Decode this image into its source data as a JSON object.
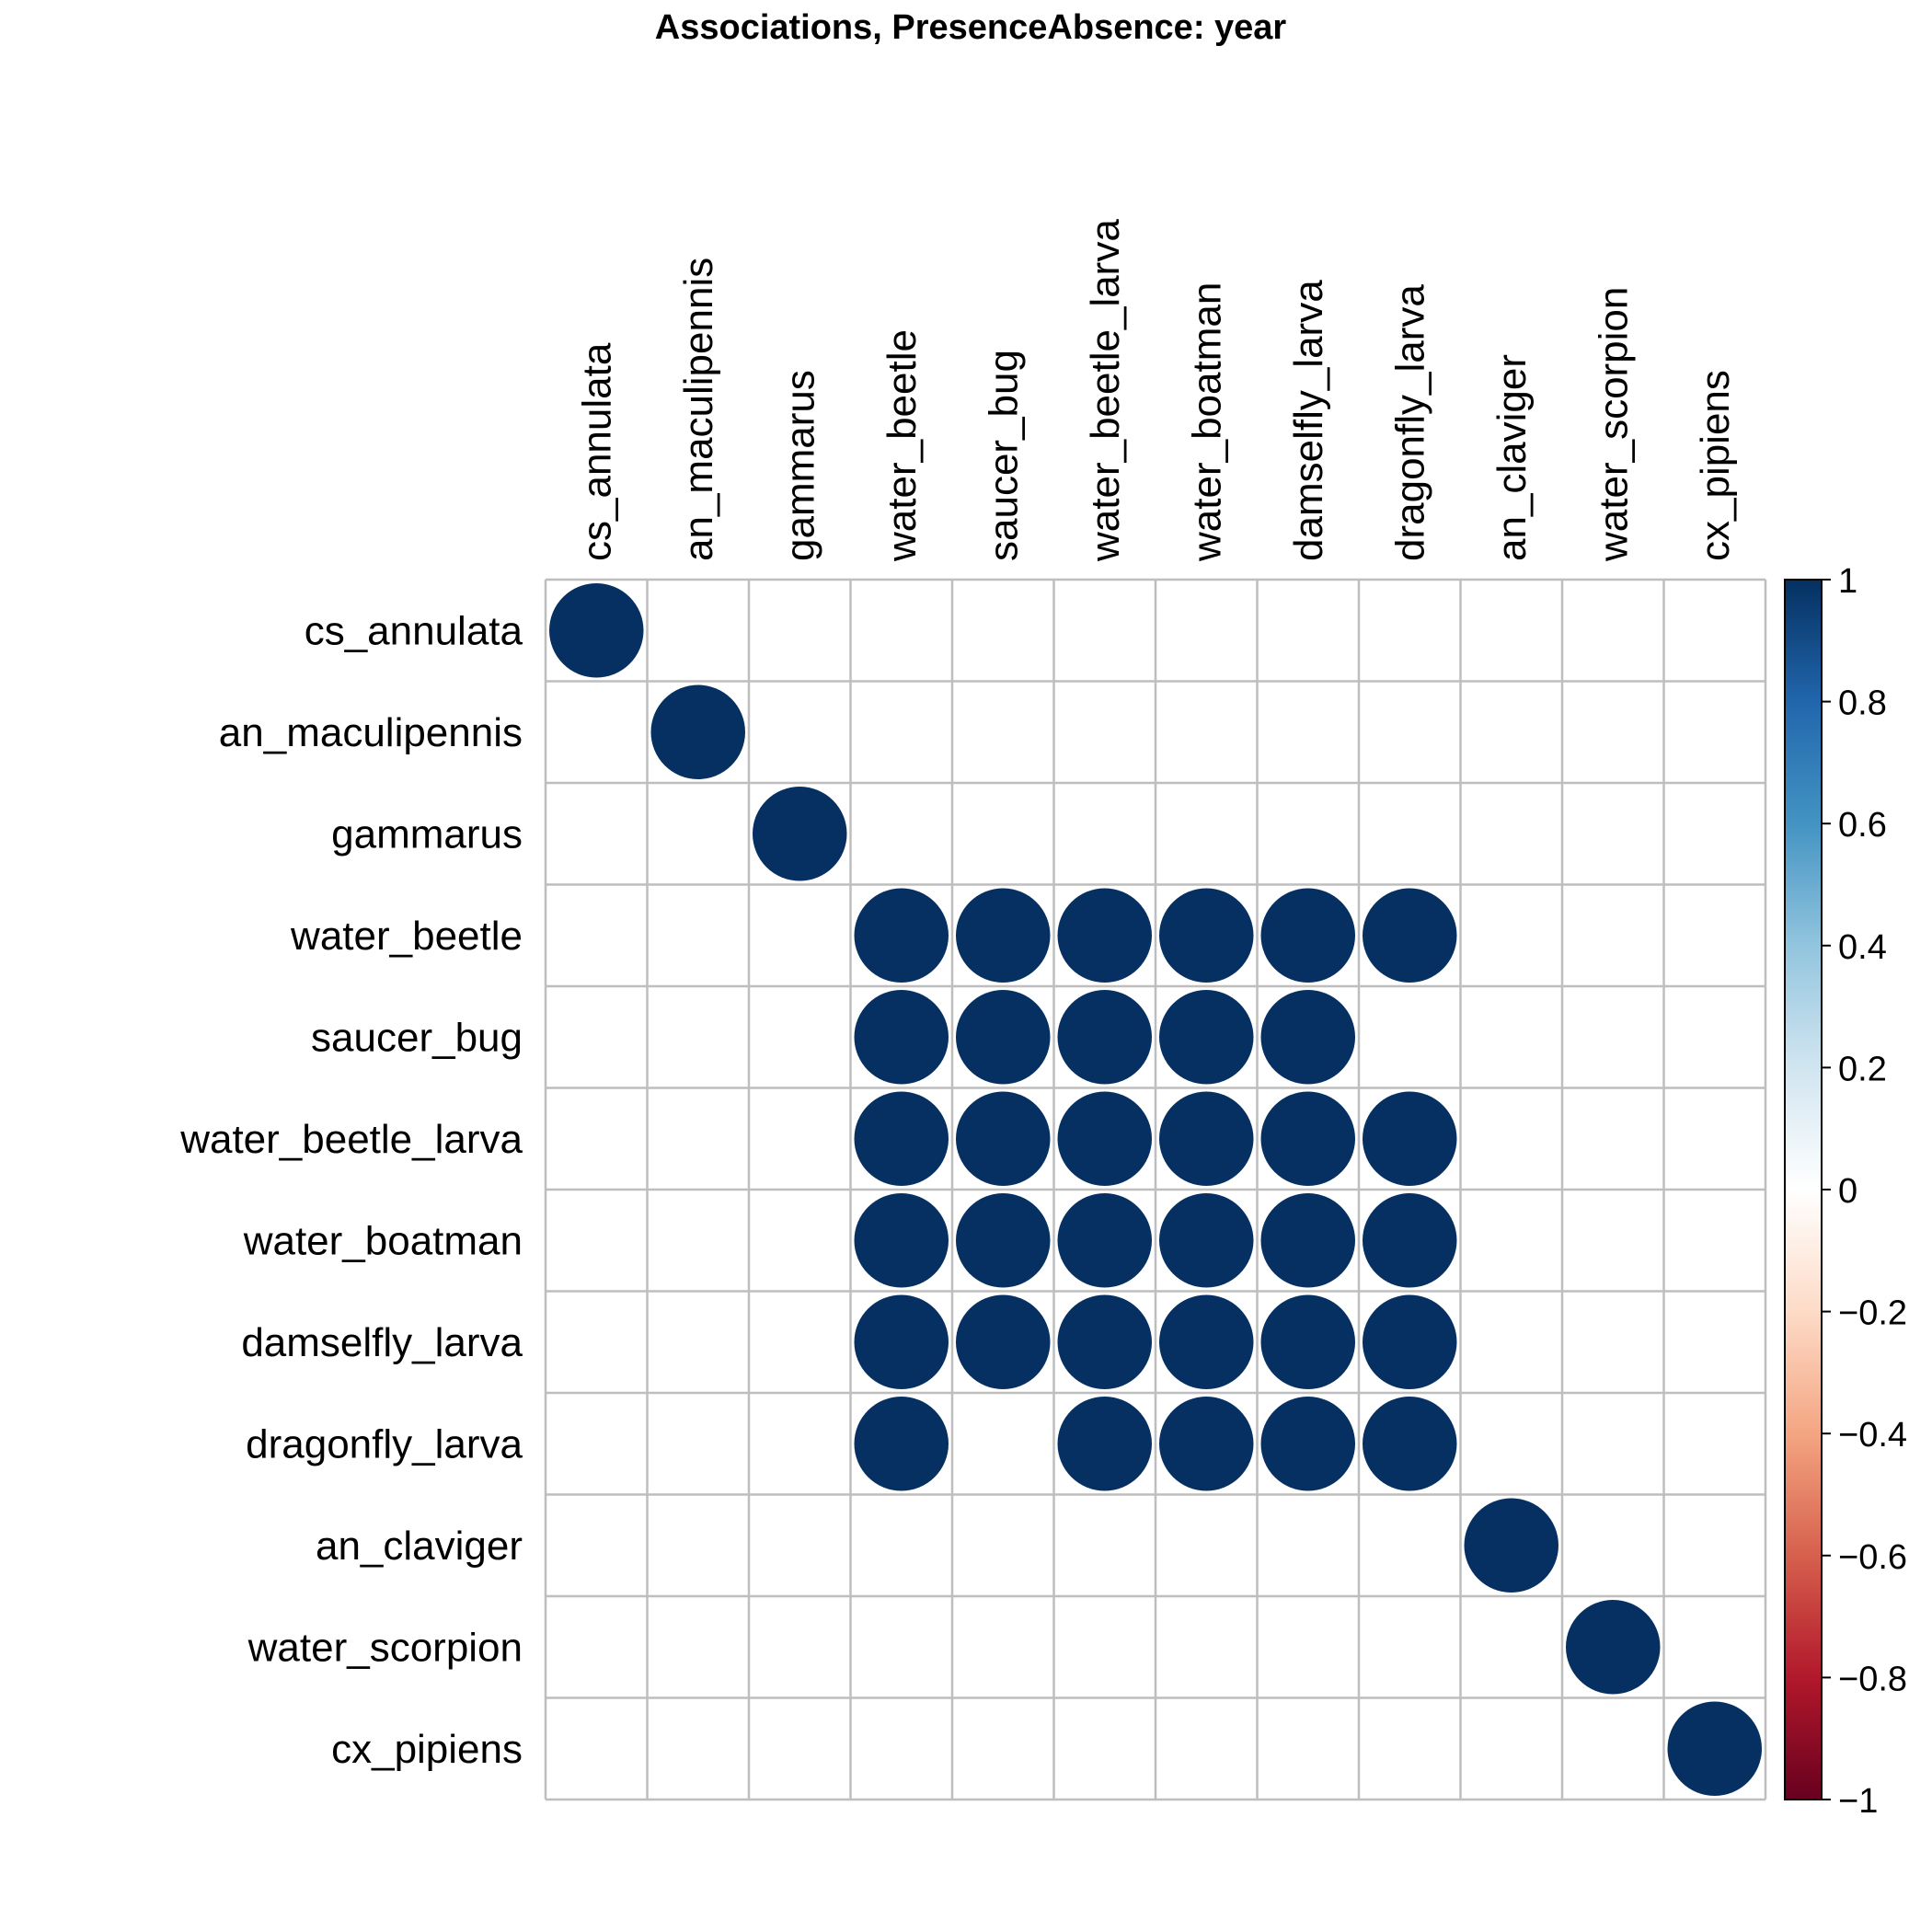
{
  "chart_data": {
    "type": "heatmap",
    "title": "Associations, PresenceAbsence: year",
    "variables": [
      "cs_annulata",
      "an_maculipennis",
      "gammarus",
      "water_beetle",
      "saucer_bug",
      "water_beetle_larva",
      "water_boatman",
      "damselfly_larva",
      "dragonfly_larva",
      "an_claviger",
      "water_scorpion",
      "cx_pipiens"
    ],
    "matrix": [
      [
        1,
        0,
        0,
        0,
        0,
        0,
        0,
        0,
        0,
        0,
        0,
        0
      ],
      [
        0,
        1,
        0,
        0,
        0,
        0,
        0,
        0,
        0,
        0,
        0,
        0
      ],
      [
        0,
        0,
        1,
        0,
        0,
        0,
        0,
        0,
        0,
        0,
        0,
        0
      ],
      [
        0,
        0,
        0,
        1,
        1,
        1,
        1,
        1,
        1,
        0,
        0,
        0
      ],
      [
        0,
        0,
        0,
        1,
        1,
        1,
        1,
        1,
        0,
        0,
        0,
        0
      ],
      [
        0,
        0,
        0,
        1,
        1,
        1,
        1,
        1,
        1,
        0,
        0,
        0
      ],
      [
        0,
        0,
        0,
        1,
        1,
        1,
        1,
        1,
        1,
        0,
        0,
        0
      ],
      [
        0,
        0,
        0,
        1,
        1,
        1,
        1,
        1,
        1,
        0,
        0,
        0
      ],
      [
        0,
        0,
        0,
        1,
        0,
        1,
        1,
        1,
        1,
        0,
        0,
        0
      ],
      [
        0,
        0,
        0,
        0,
        0,
        0,
        0,
        0,
        0,
        1,
        0,
        0
      ],
      [
        0,
        0,
        0,
        0,
        0,
        0,
        0,
        0,
        0,
        0,
        1,
        0
      ],
      [
        0,
        0,
        0,
        0,
        0,
        0,
        0,
        0,
        0,
        0,
        0,
        1
      ]
    ],
    "colorbar": {
      "range": [
        -1,
        1
      ],
      "tick_values": [
        1,
        0.8,
        0.6,
        0.4,
        0.2,
        0,
        -0.2,
        -0.4,
        -0.6,
        -0.8,
        -1
      ],
      "tick_labels": [
        "1",
        "0.8",
        "0.6",
        "0.4",
        "0.2",
        "0",
        "−0.2",
        "−0.4",
        "−0.6",
        "−0.8",
        "−1"
      ],
      "colors": [
        "#67001F",
        "#B2182B",
        "#D6604D",
        "#F4A582",
        "#FDDBC7",
        "#FFFFFF",
        "#D1E5F0",
        "#92C5DE",
        "#4393C3",
        "#2166AC",
        "#053061"
      ]
    },
    "grid": true,
    "legend": "right"
  }
}
